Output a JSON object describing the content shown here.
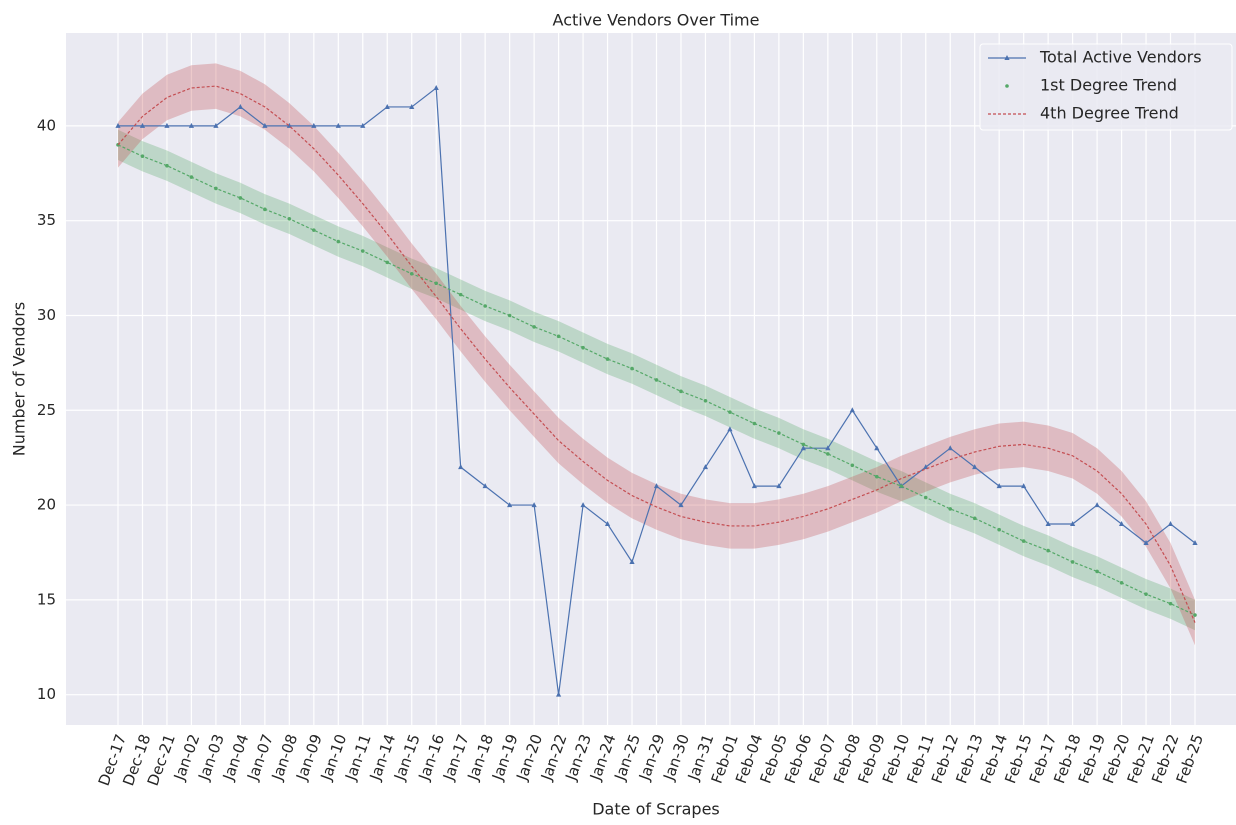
{
  "chart_data": {
    "type": "line",
    "title": "Active Vendors Over Time",
    "xlabel": "Date of Scrapes",
    "ylabel": "Number of Vendors",
    "categories": [
      "Dec-17",
      "Dec-18",
      "Dec-21",
      "Jan-02",
      "Jan-03",
      "Jan-04",
      "Jan-07",
      "Jan-08",
      "Jan-09",
      "Jan-10",
      "Jan-11",
      "Jan-14",
      "Jan-15",
      "Jan-16",
      "Jan-17",
      "Jan-18",
      "Jan-19",
      "Jan-20",
      "Jan-22",
      "Jan-23",
      "Jan-24",
      "Jan-25",
      "Jan-29",
      "Jan-30",
      "Jan-31",
      "Feb-01",
      "Feb-04",
      "Feb-05",
      "Feb-06",
      "Feb-07",
      "Feb-08",
      "Feb-09",
      "Feb-10",
      "Feb-11",
      "Feb-12",
      "Feb-13",
      "Feb-14",
      "Feb-15",
      "Feb-17",
      "Feb-18",
      "Feb-19",
      "Feb-20",
      "Feb-21",
      "Feb-22",
      "Feb-25"
    ],
    "series": [
      {
        "name": "Total Active Vendors",
        "color": "#4c72b0",
        "values": [
          40,
          40,
          40,
          40,
          40,
          41,
          40,
          40,
          40,
          40,
          40,
          41,
          41,
          42,
          22,
          21,
          20,
          20,
          10,
          20,
          19,
          17,
          21,
          20,
          22,
          24,
          21,
          21,
          23,
          23,
          25,
          23,
          21,
          22,
          23,
          22,
          21,
          21,
          19,
          19,
          20,
          19,
          18,
          19,
          18
        ]
      },
      {
        "name": "1st Degree Trend",
        "color": "#55a868",
        "band": 0.8,
        "values": [
          39.0,
          38.4,
          37.9,
          37.3,
          36.7,
          36.2,
          35.6,
          35.1,
          34.5,
          33.9,
          33.4,
          32.8,
          32.2,
          31.7,
          31.1,
          30.5,
          30.0,
          29.4,
          28.9,
          28.3,
          27.7,
          27.2,
          26.6,
          26.0,
          25.5,
          24.9,
          24.3,
          23.8,
          23.2,
          22.7,
          22.1,
          21.5,
          21.0,
          20.4,
          19.8,
          19.3,
          18.7,
          18.1,
          17.6,
          17.0,
          16.5,
          15.9,
          15.3,
          14.8,
          14.2
        ]
      },
      {
        "name": "4th Degree Trend",
        "color": "#c44e52",
        "band": 1.2,
        "values": [
          39.0,
          40.5,
          41.5,
          42.0,
          42.1,
          41.7,
          41.0,
          40.0,
          38.8,
          37.4,
          35.9,
          34.3,
          32.6,
          31.0,
          29.3,
          27.7,
          26.2,
          24.8,
          23.4,
          22.3,
          21.3,
          20.5,
          19.9,
          19.4,
          19.1,
          18.9,
          18.9,
          19.1,
          19.4,
          19.8,
          20.3,
          20.8,
          21.4,
          21.9,
          22.4,
          22.8,
          23.1,
          23.2,
          23.0,
          22.6,
          21.8,
          20.6,
          19.0,
          16.8,
          13.8
        ]
      }
    ],
    "ylim": [
      8.4,
      44.9
    ],
    "yticks": [
      10,
      15,
      20,
      25,
      30,
      35,
      40
    ],
    "grid": true,
    "legend": "upper right"
  }
}
